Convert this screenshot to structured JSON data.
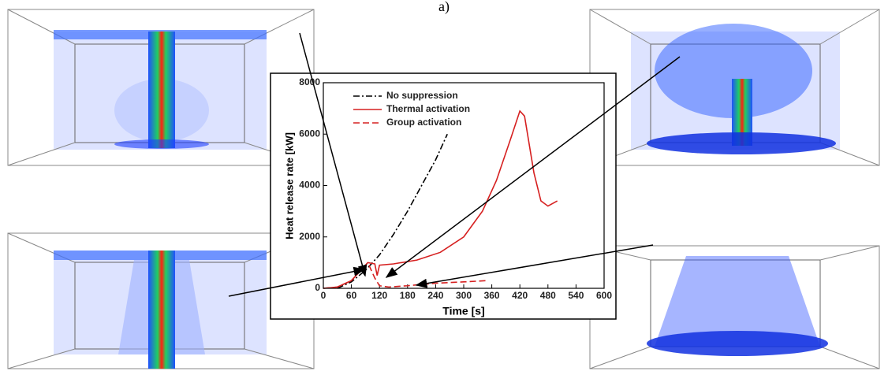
{
  "chart_data": {
    "type": "line",
    "label": "a)",
    "x_label": "Time [s]",
    "y_label": "Heat release rate [kW]",
    "xlim": [
      0,
      600
    ],
    "xticks": [
      0,
      60,
      120,
      180,
      240,
      300,
      360,
      420,
      480,
      540,
      600
    ],
    "ylim": [
      0,
      8000
    ],
    "yticks": [
      0,
      2000,
      4000,
      6000,
      8000
    ],
    "series": [
      {
        "name": "No suppression",
        "color": "#000000",
        "dash": "8,3,2,3",
        "x": [
          30,
          60,
          90,
          120,
          150,
          180,
          210,
          240,
          265
        ],
        "values": [
          0,
          250,
          700,
          1300,
          2100,
          3000,
          4000,
          5000,
          6000
        ]
      },
      {
        "name": "Thermal activation",
        "color": "#d62020",
        "dash": "none",
        "x": [
          0,
          30,
          60,
          80,
          95,
          110,
          115,
          120,
          150,
          200,
          250,
          300,
          340,
          370,
          400,
          420,
          430,
          450,
          465,
          480,
          490,
          500
        ],
        "values": [
          0,
          50,
          300,
          700,
          1000,
          950,
          500,
          900,
          950,
          1100,
          1400,
          2000,
          3000,
          4200,
          5800,
          6900,
          6700,
          4500,
          3400,
          3200,
          3300,
          3400
        ]
      },
      {
        "name": "Group activation",
        "color": "#d62020",
        "dash": "8,4",
        "x": [
          0,
          30,
          60,
          80,
          95,
          110,
          120,
          140,
          180,
          240,
          300,
          350
        ],
        "values": [
          0,
          50,
          300,
          700,
          1000,
          400,
          100,
          50,
          100,
          200,
          250,
          300
        ]
      }
    ]
  }
}
